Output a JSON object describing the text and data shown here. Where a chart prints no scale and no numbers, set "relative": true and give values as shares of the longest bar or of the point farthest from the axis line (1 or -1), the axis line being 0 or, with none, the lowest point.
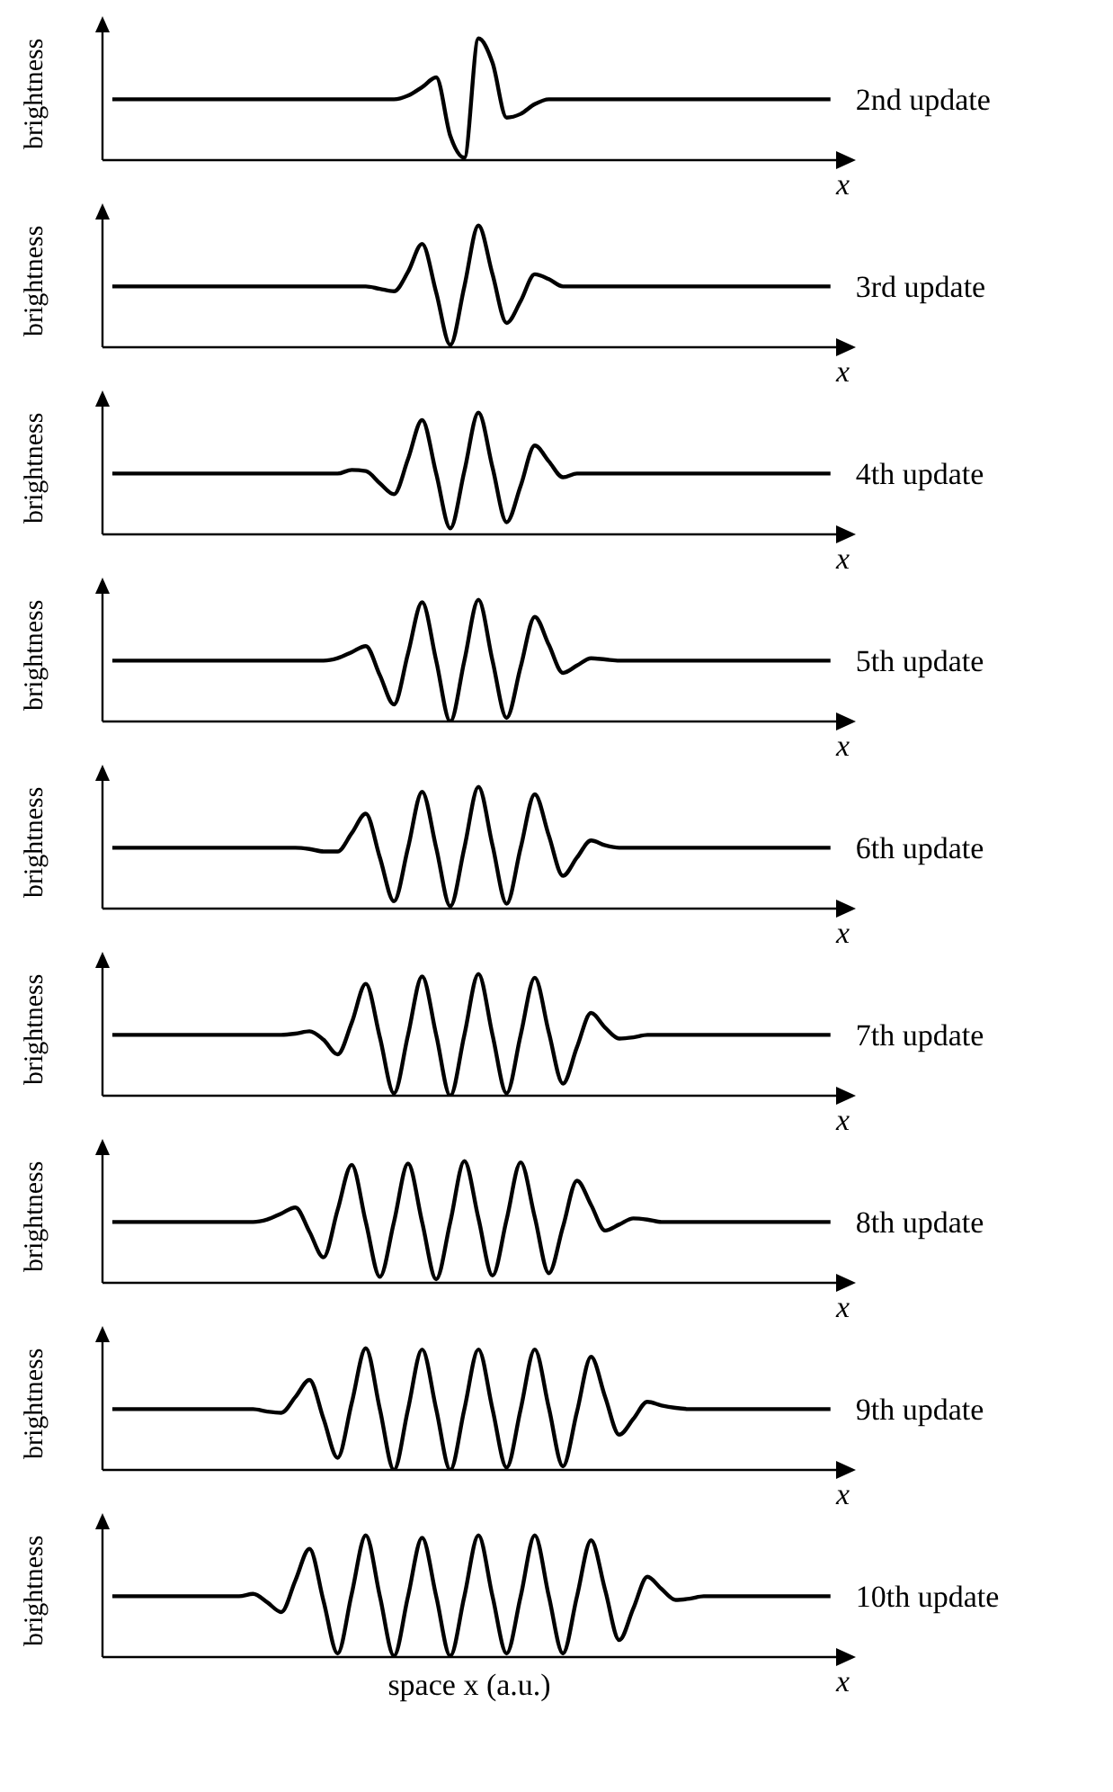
{
  "chart_data": [
    {
      "type": "line",
      "xlabel": "x",
      "ylabel": "brightness",
      "relative": true,
      "categories": [
        null,
        null,
        null,
        null,
        null,
        null,
        null,
        null,
        null,
        null,
        null,
        null,
        null,
        null,
        null,
        null,
        null,
        null,
        null,
        null,
        null,
        null,
        null,
        null,
        null,
        null,
        null,
        null,
        null,
        null,
        null,
        null,
        null,
        null,
        null,
        null,
        null,
        null,
        null,
        null,
        null,
        null,
        null,
        null,
        null,
        null,
        null,
        null,
        null,
        null,
        null,
        null
      ],
      "series": [
        {
          "name": "2nd update",
          "color": "#000000",
          "values": [
            0.5,
            0.5,
            0.5,
            0.5,
            0.5,
            0.5,
            0.5,
            0.5,
            0.5,
            0.5,
            0.5,
            0.5,
            0.5,
            0.5,
            0.5,
            0.5,
            0.5,
            0.5,
            0.5,
            0.5,
            0.5,
            0.53,
            0.6,
            0.68,
            0.2,
            0.02,
            1,
            0.8,
            0.35,
            0.38,
            0.46,
            0.5,
            0.5,
            0.5,
            0.5,
            0.5,
            0.5,
            0.5,
            0.5,
            0.5,
            0.5,
            0.5,
            0.5,
            0.5,
            0.5,
            0.5,
            0.5,
            0.5,
            0.5,
            0.5,
            0.5,
            0.5
          ]
        }
      ]
    },
    {
      "type": "line",
      "xlabel": "x",
      "ylabel": "brightness",
      "relative": true,
      "categories": [
        null,
        null,
        null,
        null,
        null,
        null,
        null,
        null,
        null,
        null,
        null,
        null,
        null,
        null,
        null,
        null,
        null,
        null,
        null,
        null,
        null,
        null,
        null,
        null,
        null,
        null,
        null,
        null,
        null,
        null,
        null,
        null,
        null,
        null,
        null,
        null,
        null,
        null,
        null,
        null,
        null,
        null,
        null,
        null,
        null,
        null,
        null,
        null,
        null,
        null,
        null,
        null
      ],
      "series": [
        {
          "name": "3rd update",
          "color": "#000000",
          "values": [
            0.5,
            0.5,
            0.5,
            0.5,
            0.5,
            0.5,
            0.5,
            0.5,
            0.5,
            0.5,
            0.5,
            0.5,
            0.5,
            0.5,
            0.5,
            0.5,
            0.5,
            0.5,
            0.5,
            0.48,
            0.46,
            0.62,
            0.85,
            0.45,
            0.02,
            0.5,
            1,
            0.6,
            0.2,
            0.38,
            0.6,
            0.56,
            0.5,
            0.5,
            0.5,
            0.5,
            0.5,
            0.5,
            0.5,
            0.5,
            0.5,
            0.5,
            0.5,
            0.5,
            0.5,
            0.5,
            0.5,
            0.5,
            0.5,
            0.5,
            0.5,
            0.5
          ]
        }
      ]
    },
    {
      "type": "line",
      "xlabel": "x",
      "ylabel": "brightness",
      "relative": true,
      "categories": [
        null,
        null,
        null,
        null,
        null,
        null,
        null,
        null,
        null,
        null,
        null,
        null,
        null,
        null,
        null,
        null,
        null,
        null,
        null,
        null,
        null,
        null,
        null,
        null,
        null,
        null,
        null,
        null,
        null,
        null,
        null,
        null,
        null,
        null,
        null,
        null,
        null,
        null,
        null,
        null,
        null,
        null,
        null,
        null,
        null,
        null,
        null,
        null,
        null,
        null,
        null,
        null
      ],
      "series": [
        {
          "name": "4th update",
          "color": "#000000",
          "values": [
            0.5,
            0.5,
            0.5,
            0.5,
            0.5,
            0.5,
            0.5,
            0.5,
            0.5,
            0.5,
            0.5,
            0.5,
            0.5,
            0.5,
            0.5,
            0.5,
            0.5,
            0.53,
            0.52,
            0.42,
            0.33,
            0.62,
            0.94,
            0.5,
            0.05,
            0.52,
            1,
            0.55,
            0.1,
            0.4,
            0.73,
            0.6,
            0.47,
            0.5,
            0.5,
            0.5,
            0.5,
            0.5,
            0.5,
            0.5,
            0.5,
            0.5,
            0.5,
            0.5,
            0.5,
            0.5,
            0.5,
            0.5,
            0.5,
            0.5,
            0.5,
            0.5
          ]
        }
      ]
    },
    {
      "type": "line",
      "xlabel": "x",
      "ylabel": "brightness",
      "relative": true,
      "categories": [
        null,
        null,
        null,
        null,
        null,
        null,
        null,
        null,
        null,
        null,
        null,
        null,
        null,
        null,
        null,
        null,
        null,
        null,
        null,
        null,
        null,
        null,
        null,
        null,
        null,
        null,
        null,
        null,
        null,
        null,
        null,
        null,
        null,
        null,
        null,
        null,
        null,
        null,
        null,
        null,
        null,
        null,
        null,
        null,
        null,
        null,
        null,
        null,
        null,
        null,
        null,
        null
      ],
      "series": [
        {
          "name": "5th update",
          "color": "#000000",
          "values": [
            0.5,
            0.5,
            0.5,
            0.5,
            0.5,
            0.5,
            0.5,
            0.5,
            0.5,
            0.5,
            0.5,
            0.5,
            0.5,
            0.5,
            0.5,
            0.5,
            0.52,
            0.57,
            0.62,
            0.38,
            0.14,
            0.56,
            0.98,
            0.5,
            0,
            0.5,
            1,
            0.5,
            0.03,
            0.45,
            0.86,
            0.63,
            0.4,
            0.46,
            0.52,
            0.51,
            0.5,
            0.5,
            0.5,
            0.5,
            0.5,
            0.5,
            0.5,
            0.5,
            0.5,
            0.5,
            0.5,
            0.5,
            0.5,
            0.5,
            0.5,
            0.5
          ]
        }
      ]
    },
    {
      "type": "line",
      "xlabel": "x",
      "ylabel": "brightness",
      "relative": true,
      "categories": [
        null,
        null,
        null,
        null,
        null,
        null,
        null,
        null,
        null,
        null,
        null,
        null,
        null,
        null,
        null,
        null,
        null,
        null,
        null,
        null,
        null,
        null,
        null,
        null,
        null,
        null,
        null,
        null,
        null,
        null,
        null,
        null,
        null,
        null,
        null,
        null,
        null,
        null,
        null,
        null,
        null,
        null,
        null,
        null,
        null,
        null,
        null,
        null,
        null,
        null,
        null,
        null
      ],
      "series": [
        {
          "name": "6th update",
          "color": "#000000",
          "values": [
            0.5,
            0.5,
            0.5,
            0.5,
            0.5,
            0.5,
            0.5,
            0.5,
            0.5,
            0.5,
            0.5,
            0.5,
            0.5,
            0.5,
            0.49,
            0.47,
            0.47,
            0.62,
            0.78,
            0.42,
            0.06,
            0.5,
            0.96,
            0.5,
            0.02,
            0.5,
            1,
            0.52,
            0.04,
            0.5,
            0.94,
            0.6,
            0.27,
            0.42,
            0.56,
            0.52,
            0.5,
            0.5,
            0.5,
            0.5,
            0.5,
            0.5,
            0.5,
            0.5,
            0.5,
            0.5,
            0.5,
            0.5,
            0.5,
            0.5,
            0.5,
            0.5
          ]
        }
      ]
    },
    {
      "type": "line",
      "xlabel": "x",
      "ylabel": "brightness",
      "relative": true,
      "categories": [
        null,
        null,
        null,
        null,
        null,
        null,
        null,
        null,
        null,
        null,
        null,
        null,
        null,
        null,
        null,
        null,
        null,
        null,
        null,
        null,
        null,
        null,
        null,
        null,
        null,
        null,
        null,
        null,
        null,
        null,
        null,
        null,
        null,
        null,
        null,
        null,
        null,
        null,
        null,
        null,
        null,
        null,
        null,
        null,
        null,
        null,
        null,
        null,
        null,
        null,
        null,
        null
      ],
      "series": [
        {
          "name": "7th update",
          "color": "#000000",
          "values": [
            0.5,
            0.5,
            0.5,
            0.5,
            0.5,
            0.5,
            0.5,
            0.5,
            0.5,
            0.5,
            0.5,
            0.5,
            0.5,
            0.51,
            0.53,
            0.46,
            0.34,
            0.6,
            0.92,
            0.48,
            0.02,
            0.5,
            0.98,
            0.5,
            0,
            0.5,
            1,
            0.5,
            0.02,
            0.5,
            0.97,
            0.52,
            0.1,
            0.4,
            0.68,
            0.56,
            0.47,
            0.48,
            0.5,
            0.5,
            0.5,
            0.5,
            0.5,
            0.5,
            0.5,
            0.5,
            0.5,
            0.5,
            0.5,
            0.5,
            0.5,
            0.5
          ]
        }
      ]
    },
    {
      "type": "line",
      "xlabel": "x",
      "ylabel": "brightness",
      "relative": true,
      "categories": [
        null,
        null,
        null,
        null,
        null,
        null,
        null,
        null,
        null,
        null,
        null,
        null,
        null,
        null,
        null,
        null,
        null,
        null,
        null,
        null,
        null,
        null,
        null,
        null,
        null,
        null,
        null,
        null,
        null,
        null,
        null,
        null,
        null,
        null,
        null,
        null,
        null,
        null,
        null,
        null,
        null,
        null,
        null,
        null,
        null,
        null,
        null,
        null,
        null,
        null,
        null,
        null
      ],
      "series": [
        {
          "name": "8th update",
          "color": "#000000",
          "values": [
            0.5,
            0.5,
            0.5,
            0.5,
            0.5,
            0.5,
            0.5,
            0.5,
            0.5,
            0.5,
            0.5,
            0.52,
            0.57,
            0.62,
            0.42,
            0.21,
            0.6,
            0.97,
            0.5,
            0.05,
            0.5,
            0.98,
            0.5,
            0.03,
            0.5,
            1,
            0.53,
            0.06,
            0.52,
            0.99,
            0.54,
            0.08,
            0.46,
            0.84,
            0.64,
            0.43,
            0.48,
            0.53,
            0.52,
            0.5,
            0.5,
            0.5,
            0.5,
            0.5,
            0.5,
            0.5,
            0.5,
            0.5,
            0.5,
            0.5,
            0.5,
            0.5
          ]
        }
      ]
    },
    {
      "type": "line",
      "xlabel": "x",
      "ylabel": "brightness",
      "relative": true,
      "categories": [
        null,
        null,
        null,
        null,
        null,
        null,
        null,
        null,
        null,
        null,
        null,
        null,
        null,
        null,
        null,
        null,
        null,
        null,
        null,
        null,
        null,
        null,
        null,
        null,
        null,
        null,
        null,
        null,
        null,
        null,
        null,
        null,
        null,
        null,
        null,
        null,
        null,
        null,
        null,
        null,
        null,
        null,
        null,
        null,
        null,
        null,
        null,
        null,
        null,
        null,
        null,
        null
      ],
      "series": [
        {
          "name": "9th update",
          "color": "#000000",
          "values": [
            0.5,
            0.5,
            0.5,
            0.5,
            0.5,
            0.5,
            0.5,
            0.5,
            0.5,
            0.5,
            0.5,
            0.48,
            0.47,
            0.6,
            0.74,
            0.42,
            0.1,
            0.55,
            1,
            0.5,
            0,
            0.5,
            0.99,
            0.5,
            0,
            0.5,
            0.99,
            0.5,
            0.02,
            0.5,
            0.99,
            0.51,
            0.03,
            0.48,
            0.93,
            0.6,
            0.29,
            0.42,
            0.56,
            0.53,
            0.51,
            0.5,
            0.5,
            0.5,
            0.5,
            0.5,
            0.5,
            0.5,
            0.5,
            0.5,
            0.5,
            0.5
          ]
        }
      ]
    },
    {
      "type": "line",
      "xlabel": "x",
      "ylabel": "brightness",
      "relative": true,
      "annotations": [
        "space x (a.u.)"
      ],
      "categories": [
        null,
        null,
        null,
        null,
        null,
        null,
        null,
        null,
        null,
        null,
        null,
        null,
        null,
        null,
        null,
        null,
        null,
        null,
        null,
        null,
        null,
        null,
        null,
        null,
        null,
        null,
        null,
        null,
        null,
        null,
        null,
        null,
        null,
        null,
        null,
        null,
        null,
        null,
        null,
        null,
        null,
        null,
        null,
        null,
        null,
        null,
        null,
        null,
        null,
        null,
        null,
        null
      ],
      "series": [
        {
          "name": "10th update",
          "color": "#000000",
          "values": [
            0.5,
            0.5,
            0.5,
            0.5,
            0.5,
            0.5,
            0.5,
            0.5,
            0.5,
            0.5,
            0.52,
            0.45,
            0.37,
            0.63,
            0.89,
            0.46,
            0.03,
            0.52,
            1,
            0.5,
            0.01,
            0.5,
            0.98,
            0.5,
            0.01,
            0.5,
            1,
            0.5,
            0.03,
            0.5,
            1,
            0.5,
            0.03,
            0.5,
            0.96,
            0.55,
            0.14,
            0.4,
            0.66,
            0.56,
            0.47,
            0.48,
            0.5,
            0.5,
            0.5,
            0.5,
            0.5,
            0.5,
            0.5,
            0.5,
            0.5,
            0.5
          ]
        }
      ]
    }
  ]
}
